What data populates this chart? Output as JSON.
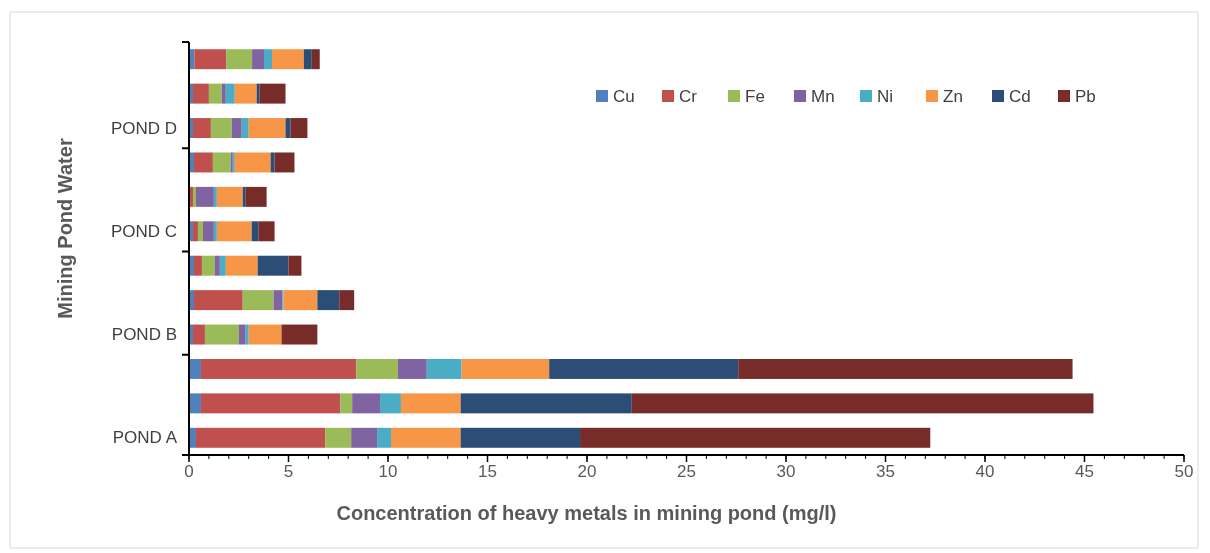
{
  "chart_data": {
    "type": "bar",
    "orientation": "horizontal",
    "stacked": true,
    "categories": [
      null,
      null,
      "POND D",
      null,
      null,
      "POND C",
      null,
      null,
      "POND B",
      null,
      null,
      "POND A"
    ],
    "series": [
      {
        "name": "Cu",
        "color": "#4f81bd",
        "values": [
          0.27,
          0.2,
          0.2,
          0.25,
          null,
          0.2,
          0.25,
          0.25,
          0.2,
          0.6,
          0.6,
          0.35
        ]
      },
      {
        "name": "Cr",
        "color": "#c0504d",
        "values": [
          1.6,
          0.8,
          0.9,
          0.95,
          0.2,
          0.25,
          0.4,
          2.45,
          0.6,
          7.8,
          7.0,
          6.5
        ]
      },
      {
        "name": "Fe",
        "color": "#9bbb59",
        "values": [
          1.3,
          0.65,
          1.05,
          0.9,
          0.15,
          0.25,
          0.65,
          1.55,
          1.7,
          2.1,
          0.6,
          1.3
        ]
      },
      {
        "name": "Mn",
        "color": "#8064a2",
        "values": [
          0.6,
          0.2,
          0.5,
          0.1,
          0.9,
          0.55,
          0.25,
          0.45,
          0.35,
          1.45,
          1.4,
          1.3
        ]
      },
      {
        "name": "Ni",
        "color": "#4bacc6",
        "values": [
          0.4,
          0.45,
          0.35,
          0.1,
          0.15,
          0.15,
          0.3,
          0.05,
          0.15,
          1.75,
          1.05,
          0.7
        ]
      },
      {
        "name": "Zn",
        "color": "#f79646",
        "values": [
          1.6,
          1.1,
          1.85,
          1.8,
          1.3,
          1.75,
          1.6,
          1.7,
          1.65,
          4.4,
          3.0,
          3.5
        ]
      },
      {
        "name": "Cd",
        "color": "#2c4d75",
        "values": [
          0.4,
          0.15,
          0.25,
          0.2,
          0.15,
          0.35,
          1.55,
          1.1,
          0,
          9.5,
          8.6,
          6.0
        ]
      },
      {
        "name": "Pb",
        "color": "#772c2a",
        "values": [
          0.4,
          1.3,
          0.85,
          1.0,
          1.05,
          0.8,
          0.65,
          0.75,
          1.8,
          16.8,
          23.2,
          17.6
        ]
      }
    ],
    "xlim": [
      0,
      50
    ],
    "xticks": [
      0,
      5,
      10,
      15,
      20,
      25,
      30,
      35,
      40,
      45,
      50
    ],
    "xlabel": "Concentration of heavy metals in mining pond (mg/l)",
    "ylabel": "Mining Pond Water",
    "legend": "top right",
    "grid": false
  }
}
